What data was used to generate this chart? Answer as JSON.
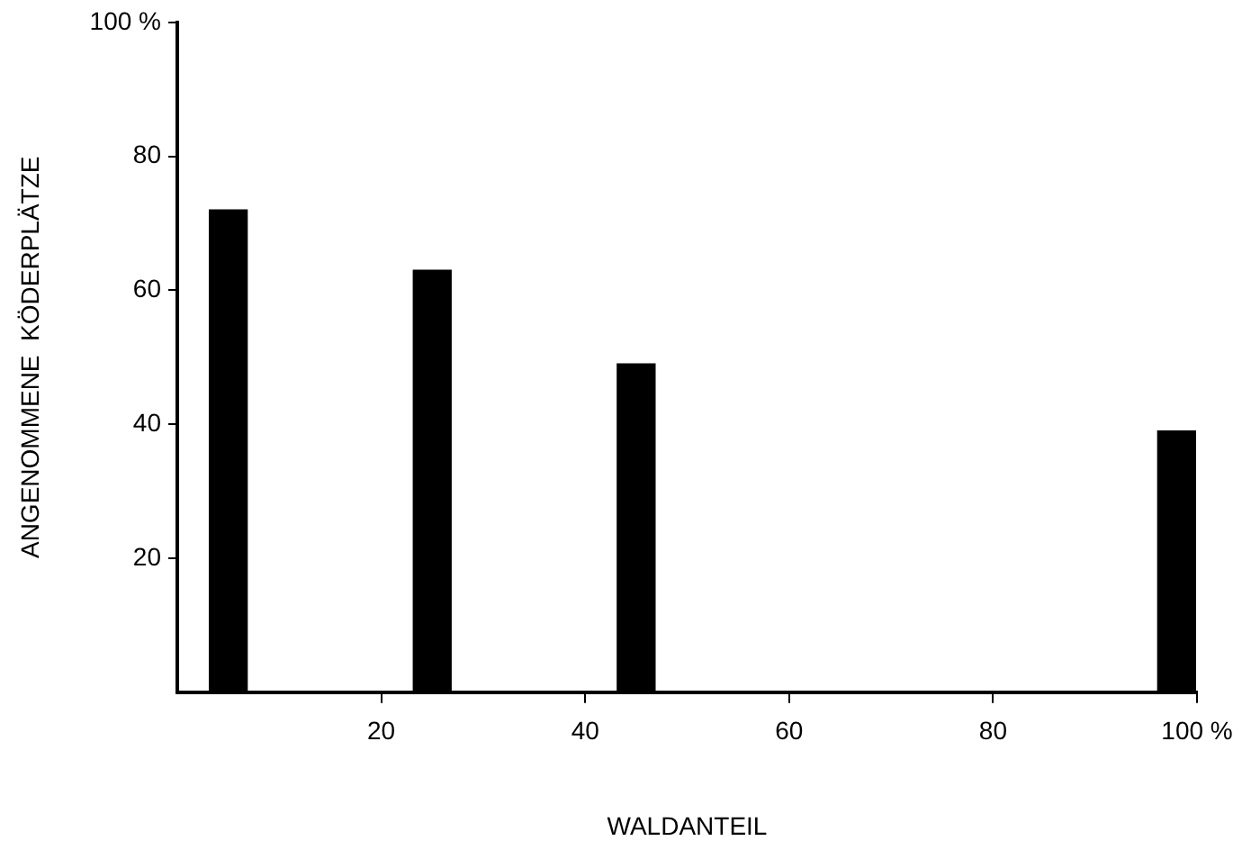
{
  "chart_data": {
    "type": "bar",
    "xlabel": "WALDANTEIL",
    "ylabel": "ANGENOMMENE  KÖDERPLÄTZE",
    "x": [
      5,
      25,
      45,
      98
    ],
    "values": [
      72,
      63,
      49,
      39
    ],
    "color": "#000000",
    "xlim": [
      0,
      100
    ],
    "xticks": [
      20,
      40,
      60,
      80,
      {
        "value": 100,
        "label": "100 %"
      }
    ],
    "ylim": [
      0,
      100
    ],
    "yticks": [
      20,
      40,
      60,
      80,
      {
        "value": 100,
        "label": "100 %"
      }
    ],
    "grid": false,
    "legend": false
  }
}
